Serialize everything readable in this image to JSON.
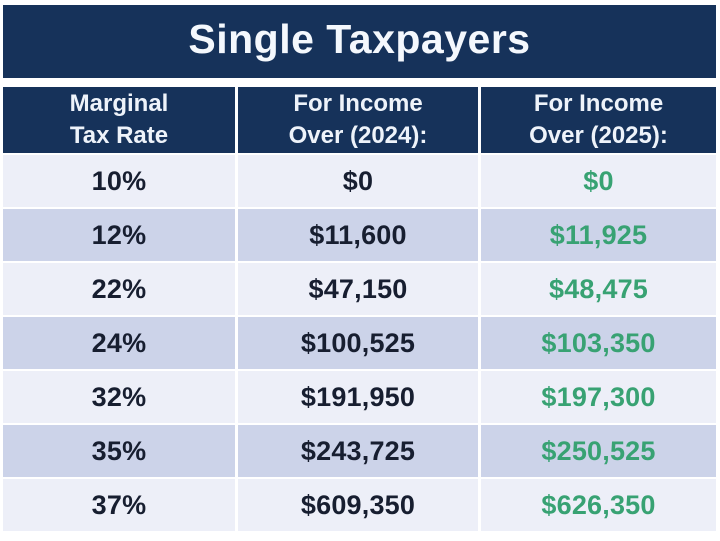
{
  "table": {
    "title": "Single Taxpayers",
    "columns": [
      {
        "label": "Marginal\nTax Rate"
      },
      {
        "label": "For Income\nOver (2024):"
      },
      {
        "label": "For Income\nOver (2025):"
      }
    ],
    "rows": [
      {
        "rate": "10%",
        "y2024": "$0",
        "y2025": "$0"
      },
      {
        "rate": "12%",
        "y2024": "$11,600",
        "y2025": "$11,925"
      },
      {
        "rate": "22%",
        "y2024": "$47,150",
        "y2025": "$48,475"
      },
      {
        "rate": "24%",
        "y2024": "$100,525",
        "y2025": "$103,350"
      },
      {
        "rate": "32%",
        "y2024": "$191,950",
        "y2025": "$197,300"
      },
      {
        "rate": "35%",
        "y2024": "$243,725",
        "y2025": "$250,525"
      },
      {
        "rate": "37%",
        "y2024": "$609,350",
        "y2025": "$626,350"
      }
    ]
  },
  "colors": {
    "banner_navy": "#16325a",
    "row_light": "#edeff8",
    "row_dark": "#ccd3e9",
    "text_dark": "#171e30",
    "text_green": "#38a273",
    "text_white": "#f4f8fd"
  },
  "chart_data": {
    "type": "table",
    "title": "Single Taxpayers",
    "columns": [
      "Marginal Tax Rate",
      "For Income Over (2024):",
      "For Income Over (2025):"
    ],
    "rows": [
      [
        "10%",
        "$0",
        "$0"
      ],
      [
        "12%",
        "$11,600",
        "$11,925"
      ],
      [
        "22%",
        "$47,150",
        "$48,475"
      ],
      [
        "24%",
        "$100,525",
        "$103,350"
      ],
      [
        "32%",
        "$191,950",
        "$197,300"
      ],
      [
        "35%",
        "$243,725",
        "$250,525"
      ],
      [
        "37%",
        "$609,350",
        "$626,350"
      ]
    ],
    "notes": "2025 income thresholds shown in green; header and title on navy background; rows alternate light/dark lavender."
  }
}
